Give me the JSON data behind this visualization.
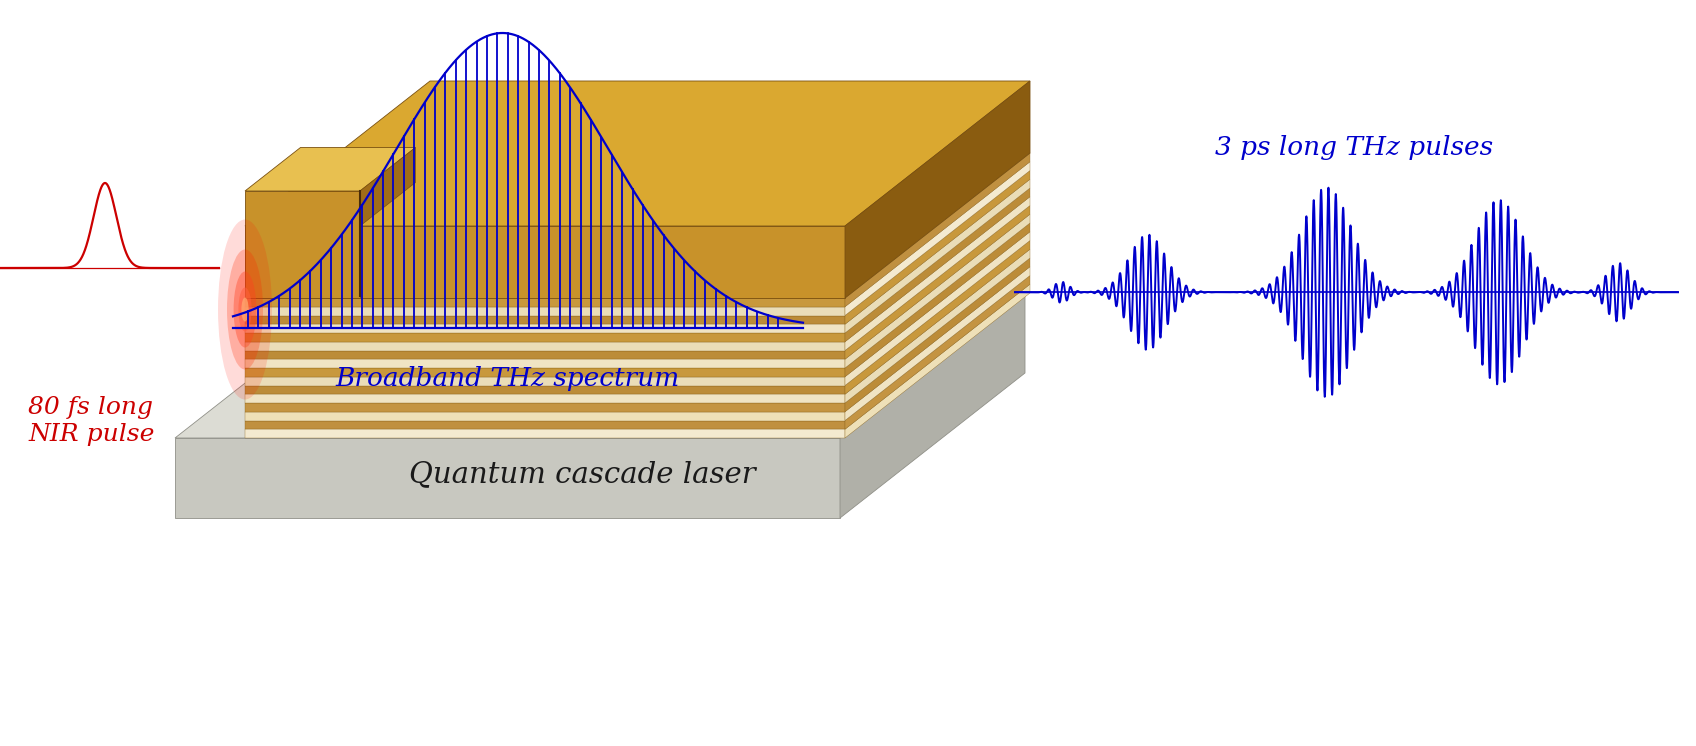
{
  "bg_color": "#ffffff",
  "blue_color": "#0000cc",
  "red_color": "#cc0000",
  "label_qcl": "Quantum cascade laser",
  "label_spectrum": "Broadband THz spectrum",
  "label_thz": "3 ps long THz pulses",
  "label_nir": "80 fs long\nNIR pulse",
  "qcl_label_fontsize": 21,
  "annotation_fontsize": 19,
  "gold_face_front": "#c8922a",
  "gold_face_top": "#daa830",
  "gold_face_right": "#8a5c10",
  "gold_top_bright": "#e8c050",
  "gray_base_front": "#c8c8c0",
  "gray_base_top": "#dcdcd4",
  "gray_base_right": "#b0b0a8",
  "layer_light": "#f0e8d0",
  "layer_dark": "#c09040",
  "spectrum_lw": 1.3,
  "thz_lw": 1.4,
  "nir_lw": 1.6
}
